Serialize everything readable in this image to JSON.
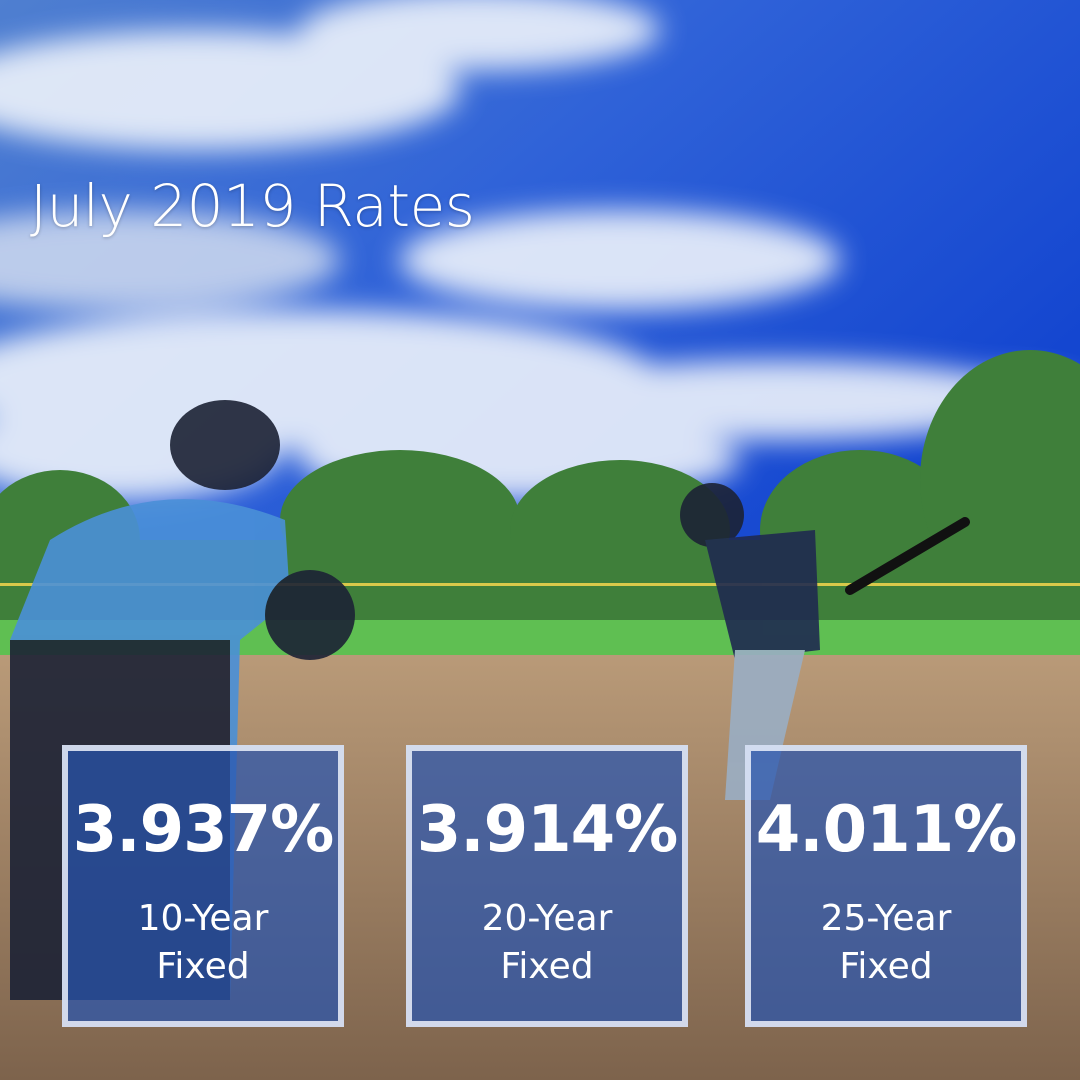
{
  "title": "July 2019 Rates",
  "rates": [
    {
      "value": "3.937%",
      "label": "10-Year Fixed"
    },
    {
      "value": "3.914%",
      "label": "20-Year Fixed"
    },
    {
      "value": "4.011%",
      "label": "25-Year Fixed"
    }
  ]
}
